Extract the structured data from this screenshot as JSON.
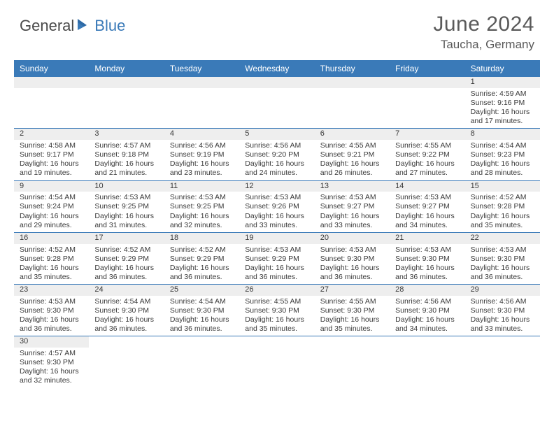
{
  "logo": {
    "part1": "General",
    "part2": "Blue"
  },
  "title": "June 2024",
  "location": "Taucha, Germany",
  "colors": {
    "header_bg": "#3a7ab8",
    "header_text": "#ffffff",
    "strip_bg": "#eeeeee",
    "border": "#3a7ab8",
    "body_text": "#3a3a3a",
    "title_text": "#5a5a5a",
    "logo_gray": "#4a4a4a",
    "logo_blue": "#3a7ab8"
  },
  "day_headers": [
    "Sunday",
    "Monday",
    "Tuesday",
    "Wednesday",
    "Thursday",
    "Friday",
    "Saturday"
  ],
  "weeks": [
    [
      {
        "n": "",
        "sr": "",
        "ss": "",
        "dl": ""
      },
      {
        "n": "",
        "sr": "",
        "ss": "",
        "dl": ""
      },
      {
        "n": "",
        "sr": "",
        "ss": "",
        "dl": ""
      },
      {
        "n": "",
        "sr": "",
        "ss": "",
        "dl": ""
      },
      {
        "n": "",
        "sr": "",
        "ss": "",
        "dl": ""
      },
      {
        "n": "",
        "sr": "",
        "ss": "",
        "dl": ""
      },
      {
        "n": "1",
        "sr": "Sunrise: 4:59 AM",
        "ss": "Sunset: 9:16 PM",
        "dl": "Daylight: 16 hours and 17 minutes."
      }
    ],
    [
      {
        "n": "2",
        "sr": "Sunrise: 4:58 AM",
        "ss": "Sunset: 9:17 PM",
        "dl": "Daylight: 16 hours and 19 minutes."
      },
      {
        "n": "3",
        "sr": "Sunrise: 4:57 AM",
        "ss": "Sunset: 9:18 PM",
        "dl": "Daylight: 16 hours and 21 minutes."
      },
      {
        "n": "4",
        "sr": "Sunrise: 4:56 AM",
        "ss": "Sunset: 9:19 PM",
        "dl": "Daylight: 16 hours and 23 minutes."
      },
      {
        "n": "5",
        "sr": "Sunrise: 4:56 AM",
        "ss": "Sunset: 9:20 PM",
        "dl": "Daylight: 16 hours and 24 minutes."
      },
      {
        "n": "6",
        "sr": "Sunrise: 4:55 AM",
        "ss": "Sunset: 9:21 PM",
        "dl": "Daylight: 16 hours and 26 minutes."
      },
      {
        "n": "7",
        "sr": "Sunrise: 4:55 AM",
        "ss": "Sunset: 9:22 PM",
        "dl": "Daylight: 16 hours and 27 minutes."
      },
      {
        "n": "8",
        "sr": "Sunrise: 4:54 AM",
        "ss": "Sunset: 9:23 PM",
        "dl": "Daylight: 16 hours and 28 minutes."
      }
    ],
    [
      {
        "n": "9",
        "sr": "Sunrise: 4:54 AM",
        "ss": "Sunset: 9:24 PM",
        "dl": "Daylight: 16 hours and 29 minutes."
      },
      {
        "n": "10",
        "sr": "Sunrise: 4:53 AM",
        "ss": "Sunset: 9:25 PM",
        "dl": "Daylight: 16 hours and 31 minutes."
      },
      {
        "n": "11",
        "sr": "Sunrise: 4:53 AM",
        "ss": "Sunset: 9:25 PM",
        "dl": "Daylight: 16 hours and 32 minutes."
      },
      {
        "n": "12",
        "sr": "Sunrise: 4:53 AM",
        "ss": "Sunset: 9:26 PM",
        "dl": "Daylight: 16 hours and 33 minutes."
      },
      {
        "n": "13",
        "sr": "Sunrise: 4:53 AM",
        "ss": "Sunset: 9:27 PM",
        "dl": "Daylight: 16 hours and 33 minutes."
      },
      {
        "n": "14",
        "sr": "Sunrise: 4:53 AM",
        "ss": "Sunset: 9:27 PM",
        "dl": "Daylight: 16 hours and 34 minutes."
      },
      {
        "n": "15",
        "sr": "Sunrise: 4:52 AM",
        "ss": "Sunset: 9:28 PM",
        "dl": "Daylight: 16 hours and 35 minutes."
      }
    ],
    [
      {
        "n": "16",
        "sr": "Sunrise: 4:52 AM",
        "ss": "Sunset: 9:28 PM",
        "dl": "Daylight: 16 hours and 35 minutes."
      },
      {
        "n": "17",
        "sr": "Sunrise: 4:52 AM",
        "ss": "Sunset: 9:29 PM",
        "dl": "Daylight: 16 hours and 36 minutes."
      },
      {
        "n": "18",
        "sr": "Sunrise: 4:52 AM",
        "ss": "Sunset: 9:29 PM",
        "dl": "Daylight: 16 hours and 36 minutes."
      },
      {
        "n": "19",
        "sr": "Sunrise: 4:53 AM",
        "ss": "Sunset: 9:29 PM",
        "dl": "Daylight: 16 hours and 36 minutes."
      },
      {
        "n": "20",
        "sr": "Sunrise: 4:53 AM",
        "ss": "Sunset: 9:30 PM",
        "dl": "Daylight: 16 hours and 36 minutes."
      },
      {
        "n": "21",
        "sr": "Sunrise: 4:53 AM",
        "ss": "Sunset: 9:30 PM",
        "dl": "Daylight: 16 hours and 36 minutes."
      },
      {
        "n": "22",
        "sr": "Sunrise: 4:53 AM",
        "ss": "Sunset: 9:30 PM",
        "dl": "Daylight: 16 hours and 36 minutes."
      }
    ],
    [
      {
        "n": "23",
        "sr": "Sunrise: 4:53 AM",
        "ss": "Sunset: 9:30 PM",
        "dl": "Daylight: 16 hours and 36 minutes."
      },
      {
        "n": "24",
        "sr": "Sunrise: 4:54 AM",
        "ss": "Sunset: 9:30 PM",
        "dl": "Daylight: 16 hours and 36 minutes."
      },
      {
        "n": "25",
        "sr": "Sunrise: 4:54 AM",
        "ss": "Sunset: 9:30 PM",
        "dl": "Daylight: 16 hours and 36 minutes."
      },
      {
        "n": "26",
        "sr": "Sunrise: 4:55 AM",
        "ss": "Sunset: 9:30 PM",
        "dl": "Daylight: 16 hours and 35 minutes."
      },
      {
        "n": "27",
        "sr": "Sunrise: 4:55 AM",
        "ss": "Sunset: 9:30 PM",
        "dl": "Daylight: 16 hours and 35 minutes."
      },
      {
        "n": "28",
        "sr": "Sunrise: 4:56 AM",
        "ss": "Sunset: 9:30 PM",
        "dl": "Daylight: 16 hours and 34 minutes."
      },
      {
        "n": "29",
        "sr": "Sunrise: 4:56 AM",
        "ss": "Sunset: 9:30 PM",
        "dl": "Daylight: 16 hours and 33 minutes."
      }
    ],
    [
      {
        "n": "30",
        "sr": "Sunrise: 4:57 AM",
        "ss": "Sunset: 9:30 PM",
        "dl": "Daylight: 16 hours and 32 minutes."
      },
      {
        "n": "",
        "sr": "",
        "ss": "",
        "dl": ""
      },
      {
        "n": "",
        "sr": "",
        "ss": "",
        "dl": ""
      },
      {
        "n": "",
        "sr": "",
        "ss": "",
        "dl": ""
      },
      {
        "n": "",
        "sr": "",
        "ss": "",
        "dl": ""
      },
      {
        "n": "",
        "sr": "",
        "ss": "",
        "dl": ""
      },
      {
        "n": "",
        "sr": "",
        "ss": "",
        "dl": ""
      }
    ]
  ]
}
